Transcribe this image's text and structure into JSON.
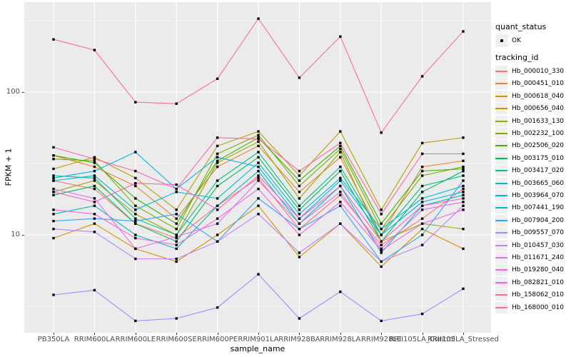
{
  "figure": {
    "background": "#FFFFFF",
    "panel_background": "#EBEBEB",
    "grid_color": "#FFFFFF",
    "tick_text_color": "#4D4D4D",
    "point_color": "#000000"
  },
  "axes": {
    "x_title": "sample_name",
    "y_title": "FPKM + 1",
    "y_tick_labels": [
      "100",
      "10"
    ]
  },
  "legend": {
    "quant_status_title": "quant_status",
    "quant_status_items": [
      {
        "label": "OK",
        "shape": "point"
      }
    ],
    "tracking_id_title": "tracking_id"
  },
  "chart_data": {
    "type": "line",
    "title": "",
    "xlabel": "sample_name",
    "ylabel": "FPKM + 1",
    "legend_position": "right",
    "grid": true,
    "point_shape": "filled-black-point",
    "y_axis": {
      "scale": "log10",
      "ticks": [
        100,
        10
      ],
      "minor_gridlines": [
        316.2,
        31.62,
        3.162
      ],
      "range_approx": [
        2.3,
        400
      ]
    },
    "categories": [
      "PB350LA",
      "RRIM600LA",
      "RRIM600LE",
      "RRIM600SE",
      "RRIM600PE",
      "RRIM901LA",
      "RRIM928BA",
      "RRIM928LA",
      "RRIM928LE",
      "RRII105LA_Control",
      "RRII105LA_Stressed"
    ],
    "series": [
      {
        "name": "Hb_000010_330",
        "color": "#F8766D",
        "values": [
          24,
          21,
          12,
          9.5,
          16,
          25,
          11,
          19,
          8.5,
          13,
          21
        ]
      },
      {
        "name": "Hb_000451_010",
        "color": "#EA8331",
        "values": [
          36,
          30,
          22,
          13,
          30,
          42,
          20,
          35,
          10,
          30,
          33
        ]
      },
      {
        "name": "Hb_000618_040",
        "color": "#D89000",
        "values": [
          9.5,
          12,
          8,
          6.5,
          10,
          16,
          7,
          12,
          6,
          11,
          8
        ]
      },
      {
        "name": "Hb_000656_040",
        "color": "#BC9D00",
        "values": [
          29,
          35,
          25,
          15,
          42,
          53,
          26,
          53,
          15,
          44,
          48
        ]
      },
      {
        "name": "Hb_001633_130",
        "color": "#9CA700",
        "values": [
          20,
          24,
          14,
          10,
          32,
          45,
          18,
          38,
          9,
          12,
          11
        ]
      },
      {
        "name": "Hb_002232_100",
        "color": "#7CAE00",
        "values": [
          34,
          33,
          16,
          11,
          37,
          50,
          22,
          40,
          11,
          26,
          30
        ]
      },
      {
        "name": "Hb_002506_020",
        "color": "#3EB400",
        "values": [
          36,
          32,
          18,
          12,
          33,
          48,
          24,
          42,
          12,
          28,
          29
        ]
      },
      {
        "name": "Hb_003175_010",
        "color": "#00BC56",
        "values": [
          19,
          22,
          12,
          9,
          22,
          35,
          15,
          28,
          9,
          20,
          28
        ]
      },
      {
        "name": "Hb_003417_020",
        "color": "#00C087",
        "values": [
          26,
          25,
          13,
          10,
          24,
          38,
          16,
          30,
          10,
          22,
          26
        ]
      },
      {
        "name": "Hb_003665_060",
        "color": "#00C0B2",
        "values": [
          14,
          16,
          10,
          8,
          16,
          28,
          12,
          22,
          7.5,
          16,
          19
        ]
      },
      {
        "name": "Hb_003964_070",
        "color": "#00BCD8",
        "values": [
          24,
          26,
          15,
          20,
          18,
          32,
          14,
          25,
          11,
          18,
          22
        ]
      },
      {
        "name": "Hb_007441_190",
        "color": "#00B4EF",
        "values": [
          25,
          28,
          38,
          21,
          35,
          30,
          13,
          24,
          10,
          17,
          20
        ]
      },
      {
        "name": "Hb_007904_200",
        "color": "#2CA5FF",
        "values": [
          12.5,
          13,
          12.5,
          14,
          9,
          18,
          11,
          16,
          6.5,
          10,
          24
        ]
      },
      {
        "name": "Hb_009557_070",
        "color": "#9590FF",
        "values": [
          3.8,
          4.1,
          2.5,
          2.6,
          3.1,
          5.3,
          2.6,
          4.0,
          2.5,
          2.8,
          4.2
        ]
      },
      {
        "name": "Hb_010457_030",
        "color": "#BC81FF",
        "values": [
          11,
          10.5,
          6.8,
          6.8,
          9,
          14,
          7.5,
          12,
          6.5,
          8.5,
          16
        ]
      },
      {
        "name": "Hb_011671_240",
        "color": "#E26EF7",
        "values": [
          21,
          18,
          8,
          9.7,
          12,
          24,
          12,
          20,
          8,
          15,
          17
        ]
      },
      {
        "name": "Hb_019280_040",
        "color": "#F763E0",
        "values": [
          15,
          14,
          9.5,
          8.5,
          13,
          21,
          10,
          17,
          7.8,
          12,
          15
        ]
      },
      {
        "name": "Hb_082821_010",
        "color": "#FF61C7",
        "values": [
          20,
          17,
          23,
          22.5,
          15,
          26,
          13,
          22,
          9,
          16,
          18
        ]
      },
      {
        "name": "Hb_158062_010",
        "color": "#FF66A8",
        "values": [
          41,
          34,
          28,
          21,
          48,
          47,
          28,
          44,
          14,
          37,
          37
        ]
      },
      {
        "name": "Hb_168000_010",
        "color": "#FF6C91",
        "values": [
          234,
          197,
          85,
          83,
          124,
          327,
          126,
          245,
          52,
          129,
          266
        ]
      }
    ]
  }
}
